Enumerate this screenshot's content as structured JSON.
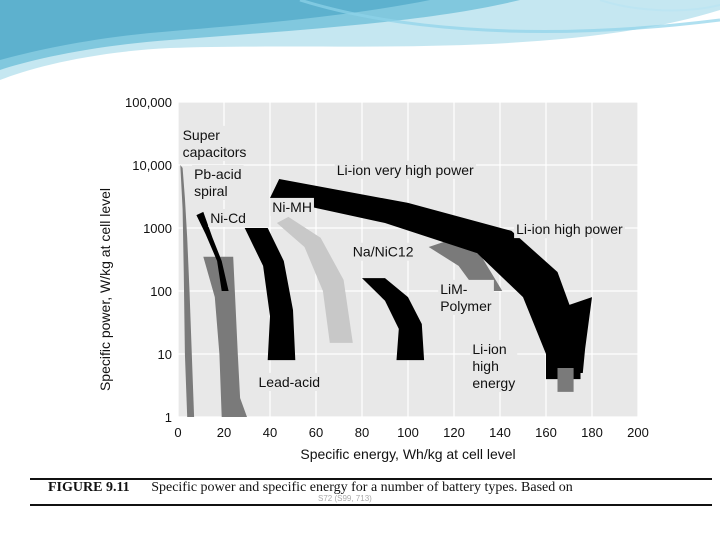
{
  "caption": {
    "figure_label": "FIGURE 9.11",
    "text": "Specific power and specific energy for a number of battery types. Based on",
    "source_note": "S72 (S99, 713)"
  },
  "colors": {
    "plot_background": "#e8e8e8",
    "grid": "#ffffff",
    "black_band": "#000000",
    "dark_gray_band": "#7a7a7a",
    "light_gray_band": "#c8c8c8",
    "header_teal": "#58b9d6"
  },
  "chart_data": {
    "type": "area",
    "xlabel": "Specific energy, Wh/kg at cell level",
    "ylabel": "Specific power, W/kg at cell level",
    "xlim": [
      0,
      200
    ],
    "ylim": [
      1,
      100000
    ],
    "yscale": "log",
    "grid": true,
    "xticks": [
      0,
      20,
      40,
      60,
      80,
      100,
      120,
      140,
      160,
      180,
      200
    ],
    "ytick_labels": [
      "1",
      "10",
      "100",
      "1000",
      "10,000",
      "100,000"
    ],
    "yticks": [
      1,
      10,
      100,
      1000,
      10000,
      100000
    ],
    "series": [
      {
        "name": "Super capacitors",
        "color": "#7a7a7a",
        "upper": [
          [
            2,
            9000
          ],
          [
            3,
            3000
          ],
          [
            4,
            700
          ],
          [
            5,
            100
          ],
          [
            6,
            10
          ],
          [
            7,
            1
          ]
        ],
        "lower": [
          [
            1,
            10000
          ],
          [
            2,
            2000
          ],
          [
            2.5,
            200
          ],
          [
            3,
            10
          ],
          [
            4,
            1
          ]
        ]
      },
      {
        "name": "Lead-acid",
        "color": "#7a7a7a",
        "upper": [
          [
            24,
            350
          ],
          [
            25,
            60
          ],
          [
            26,
            10
          ],
          [
            27,
            2
          ],
          [
            30,
            1
          ]
        ],
        "lower": [
          [
            11,
            350
          ],
          [
            16,
            80
          ],
          [
            18,
            10
          ],
          [
            19,
            1
          ]
        ]
      },
      {
        "name": "Pb-acid spiral",
        "color": "#000000",
        "upper": [
          [
            11,
            1800
          ],
          [
            15,
            700
          ],
          [
            19,
            300
          ],
          [
            22,
            100
          ]
        ],
        "lower": [
          [
            8,
            1600
          ],
          [
            12,
            800
          ],
          [
            17,
            300
          ],
          [
            19,
            100
          ]
        ]
      },
      {
        "name": "Ni-Cd",
        "color": "#000000",
        "upper": [
          [
            39,
            1000
          ],
          [
            46,
            300
          ],
          [
            50,
            50
          ],
          [
            51,
            8
          ]
        ],
        "lower": [
          [
            29,
            1000
          ],
          [
            37,
            250
          ],
          [
            40,
            40
          ],
          [
            39,
            8
          ]
        ]
      },
      {
        "name": "Ni-MH",
        "color": "#c8c8c8",
        "upper": [
          [
            48,
            1500
          ],
          [
            62,
            700
          ],
          [
            72,
            150
          ],
          [
            76,
            15
          ]
        ],
        "lower": [
          [
            43,
            1200
          ],
          [
            55,
            500
          ],
          [
            63,
            100
          ],
          [
            66,
            15
          ]
        ]
      },
      {
        "name": "Na/NiC12",
        "color": "#000000",
        "upper": [
          [
            90,
            160
          ],
          [
            100,
            80
          ],
          [
            106,
            30
          ],
          [
            107,
            8
          ]
        ],
        "lower": [
          [
            80,
            160
          ],
          [
            90,
            70
          ],
          [
            96,
            25
          ],
          [
            95,
            8
          ]
        ]
      },
      {
        "name": "LiM-Polymer",
        "color": "#7a7a7a",
        "upper": [
          [
            121,
            700
          ],
          [
            132,
            350
          ],
          [
            141,
            100
          ]
        ],
        "lower": [
          [
            109,
            500
          ],
          [
            122,
            250
          ],
          [
            130,
            100
          ]
        ]
      },
      {
        "name": "Li-ion very high power",
        "color": "#000000",
        "upper": [
          [
            44,
            6000
          ],
          [
            100,
            2500
          ],
          [
            145,
            900
          ],
          [
            165,
            200
          ],
          [
            175,
            20
          ],
          [
            175,
            4
          ]
        ],
        "lower": [
          [
            40,
            3000
          ],
          [
            90,
            1200
          ],
          [
            130,
            400
          ],
          [
            150,
            80
          ],
          [
            160,
            10
          ],
          [
            160,
            4
          ]
        ]
      },
      {
        "name": "Li-ion high power",
        "color": "#000000",
        "upper": [
          [
            180,
            80
          ],
          [
            177,
            12
          ],
          [
            176,
            5
          ]
        ],
        "lower": [
          [
            170,
            60
          ],
          [
            168,
            12
          ],
          [
            169,
            5
          ]
        ]
      },
      {
        "name": "Li-ion high energy",
        "color": "#7a7a7a",
        "upper": [
          [
            172,
            6
          ],
          [
            172,
            2.5
          ]
        ],
        "lower": [
          [
            165,
            6
          ],
          [
            165,
            2.5
          ]
        ]
      }
    ],
    "annotations": [
      {
        "lines": [
          "Super",
          "capacitors"
        ],
        "x": 2,
        "y": 25000
      },
      {
        "lines": [
          "Pb-acid",
          "spiral"
        ],
        "x": 7,
        "y": 6000
      },
      {
        "lines": [
          "Ni-Cd"
        ],
        "x": 14,
        "y": 1200
      },
      {
        "lines": [
          "Ni-MH"
        ],
        "x": 41,
        "y": 1800
      },
      {
        "lines": [
          "Li-ion very high power"
        ],
        "x": 69,
        "y": 7000
      },
      {
        "lines": [
          "Li-ion high power"
        ],
        "x": 147,
        "y": 800
      },
      {
        "lines": [
          "Na/NiC12"
        ],
        "x": 76,
        "y": 350
      },
      {
        "lines": [
          "LiM-",
          "Polymer"
        ],
        "x": 114,
        "y": 90
      },
      {
        "lines": [
          "Li-ion",
          "high",
          "energy"
        ],
        "x": 128,
        "y": 10
      },
      {
        "lines": [
          "Lead-acid"
        ],
        "x": 35,
        "y": 3
      }
    ]
  }
}
